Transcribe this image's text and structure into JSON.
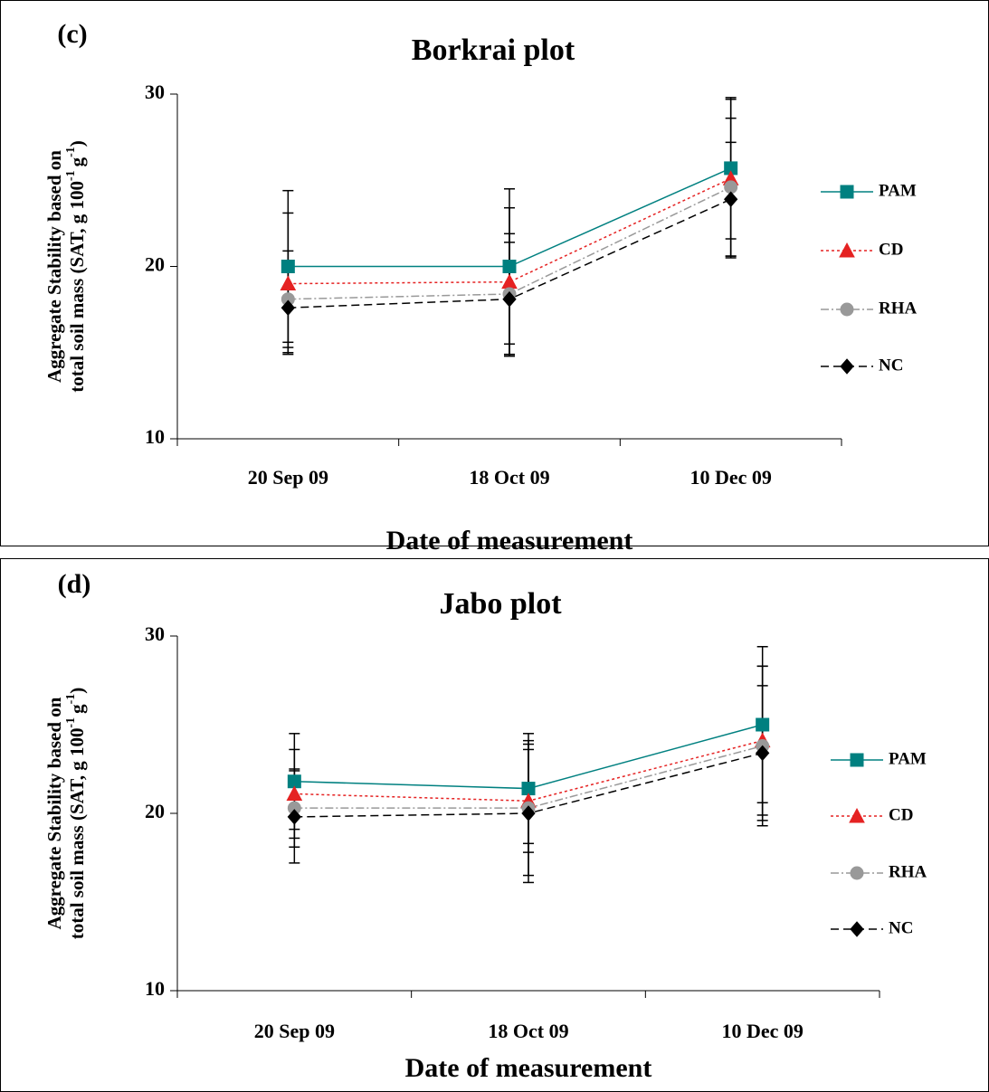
{
  "chart_data": [
    {
      "type": "line",
      "panel": "(c)",
      "title": "Borkrai plot",
      "ylabel": [
        "Aggregate Stability based on",
        "total soil mass (SAT, g 100",
        "-1",
        "g",
        "-1",
        ")"
      ],
      "xlabel": "Date of measurement",
      "categories": [
        "20 Sep 09",
        "18 Oct 09",
        "10 Dec 09"
      ],
      "ylim": [
        10,
        30
      ],
      "yticks": [
        10,
        20,
        30
      ],
      "legend": "right",
      "series": [
        {
          "name": "PAM",
          "color": "#008080",
          "marker": "square",
          "dash": "solid",
          "values": [
            20,
            20,
            25.7
          ],
          "errors": [
            4.4,
            4.5,
            4.1
          ]
        },
        {
          "name": "CD",
          "color": "#e52222",
          "marker": "triangle",
          "dash": "dotted",
          "values": [
            19,
            19.1,
            25.1
          ],
          "errors": [
            4.1,
            4.3,
            4.6
          ]
        },
        {
          "name": "RHA",
          "color": "#999999",
          "marker": "circle",
          "dash": "dashdot",
          "values": [
            18.1,
            18.4,
            24.6
          ],
          "errors": [
            2.8,
            3.5,
            4.0
          ]
        },
        {
          "name": "NC",
          "color": "#000000",
          "marker": "diamond",
          "dash": "dashed",
          "values": [
            17.6,
            18.1,
            23.9
          ],
          "errors": [
            2.6,
            3.3,
            3.3
          ]
        }
      ]
    },
    {
      "type": "line",
      "panel": "(d)",
      "title": "Jabo plot",
      "ylabel": [
        "Aggregate Stability based on",
        "total soil mass (SAT, g 100",
        "-1",
        "g",
        "-1",
        ")"
      ],
      "xlabel": "Date of measurement",
      "categories": [
        "20 Sep 09",
        "18 Oct 09",
        "10 Dec 09"
      ],
      "ylim": [
        10,
        30
      ],
      "yticks": [
        10,
        20,
        30
      ],
      "legend": "right",
      "series": [
        {
          "name": "PAM",
          "color": "#008080",
          "marker": "square",
          "dash": "solid",
          "values": [
            21.8,
            21.4,
            25
          ],
          "errors": [
            2.7,
            3.1,
            4.4
          ]
        },
        {
          "name": "CD",
          "color": "#e52222",
          "marker": "triangle",
          "dash": "dotted",
          "values": [
            21.1,
            20.7,
            24.1
          ],
          "errors": [
            2.5,
            2.9,
            4.2
          ]
        },
        {
          "name": "RHA",
          "color": "#999999",
          "marker": "circle",
          "dash": "dashdot",
          "values": [
            20.3,
            20.3,
            23.8
          ],
          "errors": [
            2.2,
            3.8,
            4.5
          ]
        },
        {
          "name": "NC",
          "color": "#000000",
          "marker": "diamond",
          "dash": "dashed",
          "values": [
            19.8,
            20,
            23.4
          ],
          "errors": [
            2.6,
            3.9,
            3.8
          ]
        }
      ]
    }
  ]
}
